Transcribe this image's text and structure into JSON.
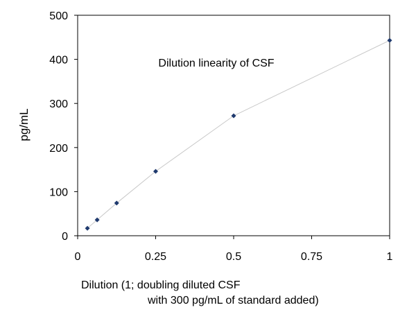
{
  "chart_data": {
    "type": "scatter",
    "title": "Dilution linearity of CSF",
    "xlabel_line1": "Dilution (1; doubling diluted CSF",
    "xlabel_line2": "with 300 pg/mL of standard added)",
    "ylabel": "pg/mL",
    "xlim": [
      0,
      1
    ],
    "ylim": [
      0,
      500
    ],
    "x_ticks": [
      0,
      0.25,
      0.5,
      0.75,
      1
    ],
    "x_tick_labels": [
      "0",
      "0.25",
      "0.5",
      "0.75",
      "1"
    ],
    "y_ticks": [
      0,
      100,
      200,
      300,
      400,
      500
    ],
    "y_tick_labels": [
      "0",
      "100",
      "200",
      "300",
      "400",
      "500"
    ],
    "grid": false,
    "connecting_line": true,
    "marker": "diamond",
    "colors": {
      "marker": "#1f3a6e",
      "line": "#c8c8c8",
      "axis": "#000000"
    },
    "series": [
      {
        "x": [
          0.03125,
          0.0625,
          0.125,
          0.25,
          0.5,
          1
        ],
        "y": [
          17,
          36,
          74,
          146,
          272,
          443
        ]
      }
    ]
  }
}
